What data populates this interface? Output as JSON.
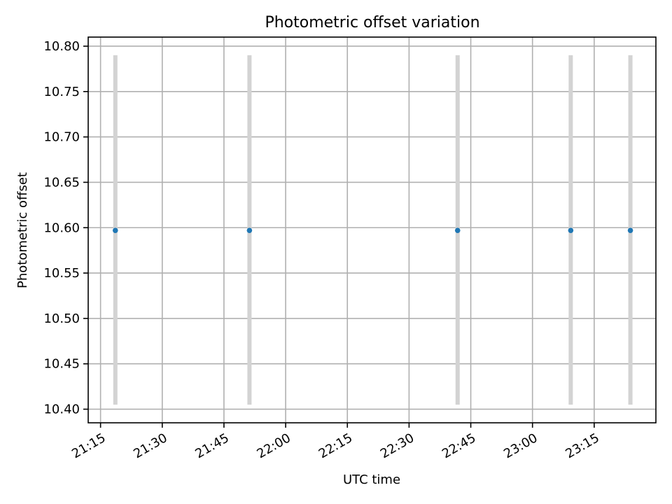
{
  "chart_data": {
    "type": "scatter",
    "title": "Photometric offset variation",
    "xlabel": "UTC time",
    "ylabel": "Photometric offset",
    "xlim": [
      "21:12",
      "23:30"
    ],
    "ylim": [
      10.385,
      10.81
    ],
    "grid": true,
    "x_ticks": [
      "21:15",
      "21:30",
      "21:45",
      "22:00",
      "22:15",
      "22:30",
      "22:45",
      "23:00",
      "23:15"
    ],
    "y_ticks": [
      "10.40",
      "10.45",
      "10.50",
      "10.55",
      "10.60",
      "10.65",
      "10.70",
      "10.75",
      "10.80"
    ],
    "points": [
      {
        "x": "21:18:36",
        "y": 10.597,
        "err_low": 10.405,
        "err_high": 10.79
      },
      {
        "x": "21:51:12",
        "y": 10.597,
        "err_low": 10.405,
        "err_high": 10.79
      },
      {
        "x": "22:41:48",
        "y": 10.597,
        "err_low": 10.405,
        "err_high": 10.79
      },
      {
        "x": "23:09:18",
        "y": 10.597,
        "err_low": 10.405,
        "err_high": 10.79
      },
      {
        "x": "23:23:48",
        "y": 10.597,
        "err_low": 10.405,
        "err_high": 10.79
      }
    ],
    "colors": {
      "point": "#1f77b4",
      "errorbar": "#d3d3d3",
      "grid": "#b0b0b0"
    }
  }
}
